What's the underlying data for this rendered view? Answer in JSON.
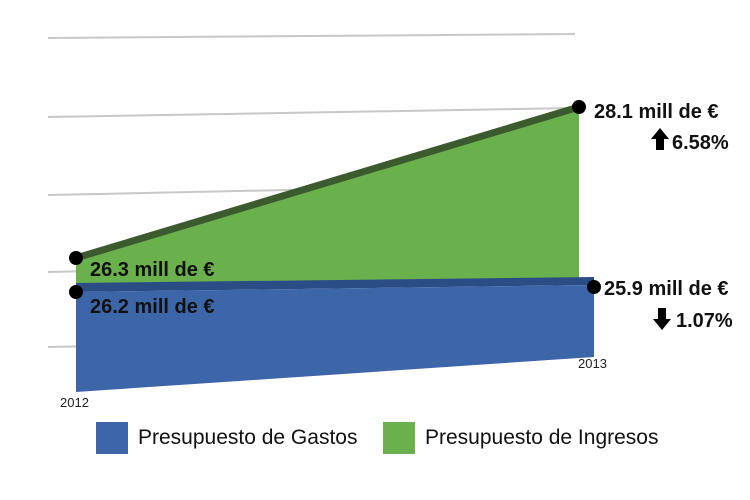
{
  "chart_data": {
    "type": "area",
    "categories": [
      "2012",
      "2013"
    ],
    "series": [
      {
        "name": "Presupuesto de Ingresos",
        "values": [
          26.3,
          28.1
        ],
        "labels": [
          "26.3 mill de €",
          "28.1 mill de €"
        ],
        "color": "#6ab04c",
        "edge_color": "#3b5a2e",
        "change": {
          "direction": "up",
          "text": "6.58%"
        }
      },
      {
        "name": "Presupuesto de Gastos",
        "values": [
          26.2,
          25.9
        ],
        "labels": [
          "26.2 mill de €",
          "25.9 mill de €"
        ],
        "color": "#3d66a8",
        "edge_color": "#2b4d85",
        "change": {
          "direction": "down",
          "text": "1.07%"
        }
      }
    ],
    "grid": true,
    "legend_position": "bottom",
    "legend": [
      "Presupuesto de Gastos",
      "Presupuesto de Ingresos"
    ],
    "xlabel": "",
    "ylabel": ""
  }
}
